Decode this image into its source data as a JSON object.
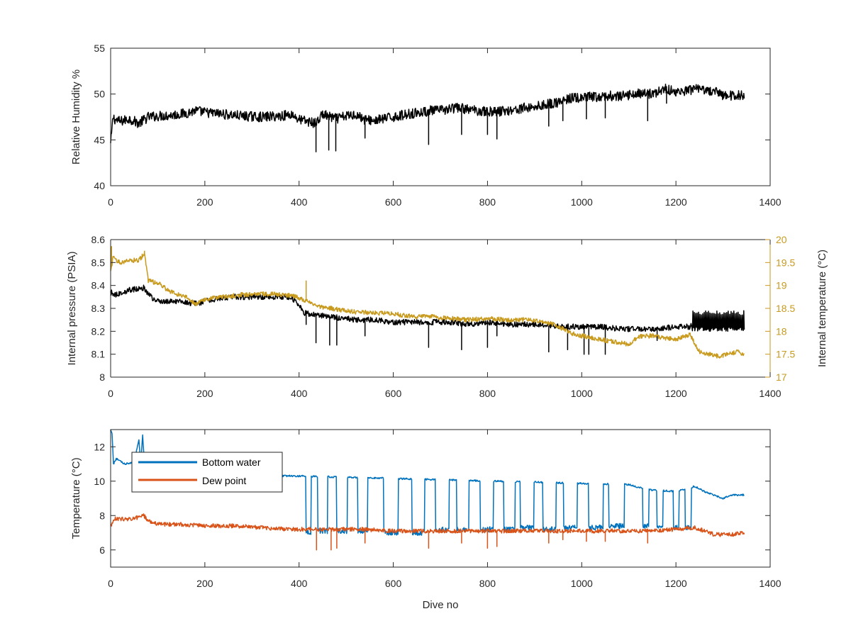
{
  "chart_data": [
    {
      "type": "line",
      "xlabel": "",
      "ylabel": "Relative Humidity %",
      "xlim": [
        0,
        1400
      ],
      "ylim": [
        40,
        55
      ],
      "xticks": [
        0,
        200,
        400,
        600,
        800,
        1000,
        1200,
        1400
      ],
      "yticks": [
        40,
        45,
        50,
        55
      ],
      "series": [
        {
          "color": "#000000",
          "x": [
            0,
            5,
            10,
            20,
            40,
            60,
            80,
            100,
            130,
            160,
            180,
            200,
            240,
            280,
            320,
            360,
            385,
            400,
            420,
            436,
            450,
            465,
            480,
            500,
            520,
            540,
            560,
            580,
            600,
            620,
            640,
            660,
            680,
            700,
            720,
            740,
            760,
            780,
            800,
            820,
            840,
            860,
            880,
            900,
            920,
            940,
            960,
            980,
            1000,
            1020,
            1040,
            1060,
            1080,
            1100,
            1120,
            1140,
            1160,
            1180,
            1200,
            1220,
            1240,
            1260,
            1280,
            1300,
            1320,
            1340,
            1345
          ],
          "y": [
            44.5,
            47.5,
            47.2,
            47.0,
            47.3,
            46.8,
            47.5,
            47.6,
            47.7,
            47.9,
            48.2,
            48.0,
            47.8,
            47.6,
            47.5,
            47.6,
            47.8,
            47.2,
            47.0,
            46.8,
            47.8,
            47.5,
            47.3,
            47.6,
            47.8,
            47.2,
            47.1,
            47.3,
            47.5,
            47.7,
            47.9,
            48.0,
            48.2,
            48.2,
            48.4,
            48.5,
            48.3,
            48.2,
            48.1,
            48.1,
            48.2,
            48.3,
            48.5,
            48.6,
            48.8,
            49.0,
            49.2,
            49.6,
            49.5,
            49.7,
            49.6,
            49.8,
            49.7,
            49.9,
            50.1,
            50.0,
            50.2,
            50.6,
            50.2,
            50.3,
            50.5,
            50.4,
            50.3,
            49.9,
            49.8,
            49.9,
            49.6
          ],
          "noise": 0.55,
          "spikes": [
            [
              436,
              43.7
            ],
            [
              463,
              43.9
            ],
            [
              478,
              43.8
            ],
            [
              540,
              45.2
            ],
            [
              675,
              44.5
            ],
            [
              745,
              45.6
            ],
            [
              800,
              45.6
            ],
            [
              820,
              45.1
            ],
            [
              930,
              46.5
            ],
            [
              960,
              47.1
            ],
            [
              1010,
              47.3
            ],
            [
              1050,
              47.4
            ],
            [
              1140,
              47.1
            ],
            [
              1180,
              49.0
            ]
          ]
        }
      ]
    },
    {
      "type": "line",
      "xlabel": "",
      "ylabel": "Internal pressure (PSIA)",
      "ylabel_right": "Internal temperature (°C)",
      "xlim": [
        0,
        1400
      ],
      "ylim": [
        8,
        8.6
      ],
      "ylim_right": [
        17,
        20
      ],
      "xticks": [
        0,
        200,
        400,
        600,
        800,
        1000,
        1200,
        1400
      ],
      "yticks": [
        8,
        8.1,
        8.2,
        8.3,
        8.4,
        8.5,
        8.6
      ],
      "yticks_right": [
        17,
        17.5,
        18,
        18.5,
        19,
        19.5,
        20
      ],
      "right_axis_color": "#c89a1e",
      "series": [
        {
          "axis": "left",
          "color": "#000000",
          "x": [
            0,
            10,
            40,
            70,
            90,
            110,
            150,
            180,
            220,
            260,
            300,
            340,
            380,
            395,
            410,
            440,
            480,
            520,
            560,
            600,
            640,
            680,
            720,
            760,
            800,
            840,
            880,
            920,
            960,
            1000,
            1040,
            1080,
            1120,
            1160,
            1200,
            1230,
            1240,
            1280,
            1320,
            1345
          ],
          "y": [
            8.37,
            8.36,
            8.38,
            8.39,
            8.34,
            8.33,
            8.33,
            8.32,
            8.34,
            8.35,
            8.35,
            8.35,
            8.35,
            8.33,
            8.28,
            8.27,
            8.26,
            8.25,
            8.25,
            8.24,
            8.24,
            8.24,
            8.24,
            8.23,
            8.24,
            8.23,
            8.23,
            8.23,
            8.22,
            8.22,
            8.22,
            8.21,
            8.21,
            8.21,
            8.22,
            8.22,
            8.24,
            8.24,
            8.24,
            8.24
          ],
          "noise": 0.012,
          "burst": [
            1235,
            1345,
            8.2,
            8.29
          ],
          "spikes": [
            [
              415,
              8.23
            ],
            [
              436,
              8.15
            ],
            [
              465,
              8.14
            ],
            [
              480,
              8.14
            ],
            [
              540,
              8.18
            ],
            [
              675,
              8.13
            ],
            [
              745,
              8.12
            ],
            [
              800,
              8.13
            ],
            [
              820,
              8.18
            ],
            [
              930,
              8.11
            ],
            [
              970,
              8.12
            ],
            [
              1005,
              8.1
            ],
            [
              1015,
              8.1
            ],
            [
              1050,
              8.1
            ],
            [
              1160,
              8.16
            ]
          ]
        },
        {
          "axis": "right",
          "color": "#c89a1e",
          "x": [
            0,
            5,
            20,
            40,
            60,
            72,
            80,
            100,
            130,
            160,
            180,
            200,
            240,
            280,
            320,
            360,
            385,
            400,
            420,
            440,
            480,
            520,
            560,
            600,
            640,
            680,
            720,
            760,
            800,
            840,
            880,
            920,
            940,
            960,
            980,
            1000,
            1040,
            1080,
            1100,
            1120,
            1150,
            1200,
            1230,
            1250,
            1270,
            1290,
            1310,
            1330,
            1345
          ],
          "y": [
            19.3,
            19.6,
            19.5,
            19.55,
            19.55,
            19.7,
            19.1,
            19.05,
            18.85,
            18.75,
            18.6,
            18.7,
            18.75,
            18.8,
            18.82,
            18.8,
            18.78,
            18.72,
            18.65,
            18.55,
            18.48,
            18.42,
            18.4,
            18.38,
            18.32,
            18.32,
            18.28,
            18.25,
            18.28,
            18.25,
            18.25,
            18.2,
            18.15,
            18.05,
            17.95,
            17.9,
            17.82,
            17.75,
            17.72,
            17.88,
            17.9,
            17.82,
            17.92,
            17.55,
            17.5,
            17.45,
            17.5,
            17.55,
            17.5
          ],
          "noise": 0.05,
          "spikes": [
            [
              2,
              19.85
            ],
            [
              72,
              19.75
            ],
            [
              415,
              19.1
            ]
          ]
        }
      ]
    },
    {
      "type": "line",
      "xlabel": "Dive no",
      "ylabel": "Temperature (°C)",
      "xlim": [
        0,
        1400
      ],
      "ylim": [
        5,
        13
      ],
      "xticks": [
        0,
        200,
        400,
        600,
        800,
        1000,
        1200,
        1400
      ],
      "yticks": [
        6,
        8,
        10,
        12
      ],
      "legend_position": "top-left",
      "series": [
        {
          "name": "Bottom water",
          "color": "#0072bd",
          "x": [
            0,
            3,
            6,
            12,
            30,
            50,
            60,
            64,
            68,
            72,
            76,
            100,
            140,
            200,
            260,
            320,
            370,
            395,
            1100,
            1140,
            1200,
            1240,
            1260,
            1300,
            1320,
            1345
          ],
          "y": [
            13.0,
            12.8,
            11.0,
            11.3,
            11.0,
            11.1,
            12.4,
            11.0,
            12.7,
            10.9,
            10.9,
            10.8,
            10.6,
            10.4,
            10.4,
            10.3,
            10.3,
            10.3,
            9.8,
            9.5,
            9.4,
            9.7,
            9.4,
            9.0,
            9.2,
            9.2
          ],
          "noise": 0.05,
          "dips": [
            [
              415,
              418,
              425,
              7.0
            ],
            [
              440,
              448,
              460,
              7.1
            ],
            [
              480,
              488,
              502,
              7.1
            ],
            [
              525,
              532,
              545,
              7.1
            ],
            [
              580,
              590,
              610,
              7.0
            ],
            [
              640,
              648,
              666,
              7.0
            ],
            [
              690,
              697,
              718,
              7.2
            ],
            [
              735,
              742,
              760,
              7.2
            ],
            [
              785,
              792,
              812,
              7.2
            ],
            [
              835,
              842,
              858,
              7.2
            ],
            [
              870,
              876,
              898,
              7.3
            ],
            [
              918,
              925,
              945,
              7.2
            ],
            [
              962,
              969,
              990,
              7.3
            ],
            [
              1015,
              1022,
              1045,
              7.3
            ],
            [
              1058,
              1063,
              1090,
              7.4
            ],
            [
              1130,
              1134,
              1142,
              7.4
            ],
            [
              1160,
              1166,
              1172,
              7.4
            ],
            [
              1195,
              1198,
              1206,
              7.3
            ],
            [
              1220,
              1226,
              1232,
              7.3
            ]
          ]
        },
        {
          "name": "Dew point",
          "color": "#d95319",
          "x": [
            0,
            10,
            40,
            60,
            70,
            80,
            100,
            140,
            200,
            260,
            320,
            380,
            420,
            480,
            540,
            600,
            660,
            720,
            780,
            840,
            900,
            960,
            1020,
            1080,
            1140,
            1200,
            1240,
            1280,
            1320,
            1345
          ],
          "y": [
            7.4,
            7.8,
            7.8,
            7.9,
            8.0,
            7.7,
            7.5,
            7.5,
            7.4,
            7.4,
            7.3,
            7.2,
            7.2,
            7.2,
            7.2,
            7.1,
            7.1,
            7.1,
            7.1,
            7.1,
            7.1,
            7.1,
            7.1,
            7.1,
            7.1,
            7.2,
            7.3,
            6.9,
            6.9,
            7.0
          ],
          "noise": 0.12,
          "spikes": [
            [
              437,
              6.0
            ],
            [
              468,
              6.0
            ],
            [
              480,
              6.1
            ],
            [
              540,
              6.4
            ],
            [
              675,
              6.1
            ],
            [
              745,
              6.4
            ],
            [
              800,
              6.1
            ],
            [
              820,
              6.2
            ],
            [
              930,
              6.4
            ],
            [
              960,
              6.6
            ],
            [
              1010,
              6.5
            ],
            [
              1050,
              6.5
            ],
            [
              1140,
              6.4
            ]
          ]
        }
      ]
    }
  ]
}
